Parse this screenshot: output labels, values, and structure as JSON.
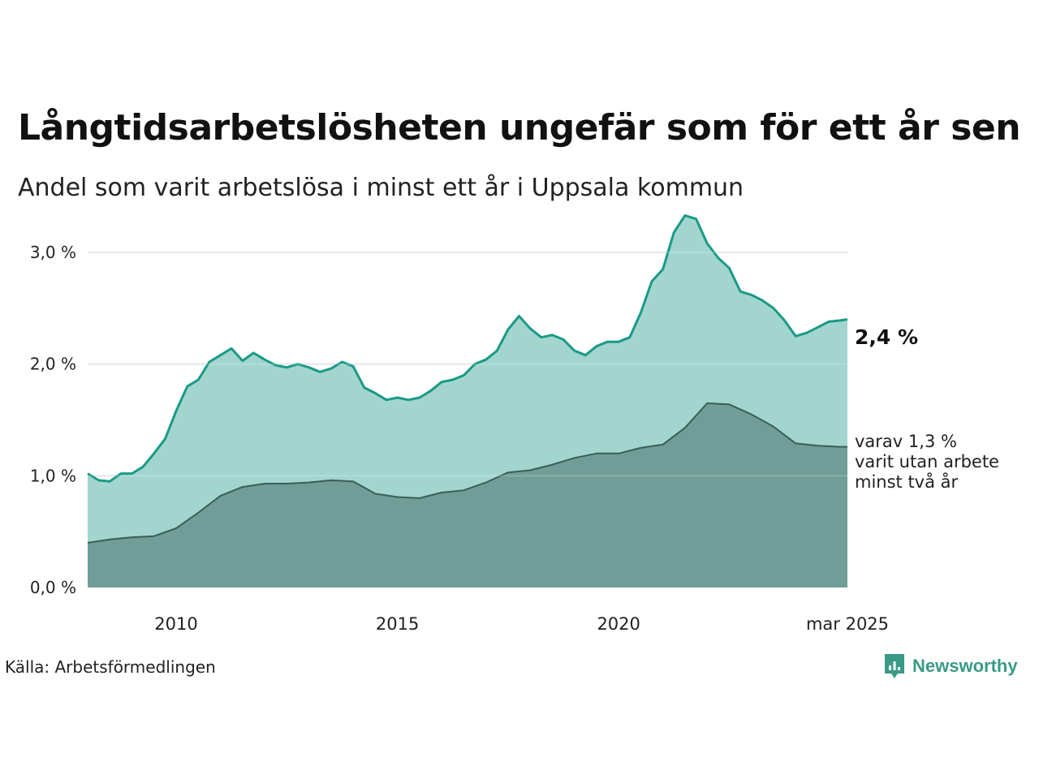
{
  "title": "Långtidsarbetslösheten ungefär som för ett år sen",
  "subtitle": "Andel som varit arbetslösa i minst ett år i Uppsala kommun",
  "end_label": "2,4 %",
  "sub_label": [
    "varav 1,3 %",
    "varit utan arbete",
    "minst två år"
  ],
  "source": "Källa: Arbetsförmedlingen",
  "brand": "Newsworthy",
  "colors": {
    "total_line": "#1a9a86",
    "total_fill": "#a3d5cf",
    "long_line": "#3b5e58",
    "long_fill": "#709d97",
    "grid": "#e2e2e2",
    "brand": "#3a9a86"
  },
  "chart_data": {
    "type": "area",
    "x_range": [
      2008.0,
      2025.17
    ],
    "ylim": [
      0,
      3.4
    ],
    "y_ticks": [
      {
        "value": 0,
        "label": "0,0 %"
      },
      {
        "value": 1,
        "label": "1,0 %"
      },
      {
        "value": 2,
        "label": "2,0 %"
      },
      {
        "value": 3,
        "label": "3,0 %"
      }
    ],
    "x_ticks": [
      {
        "value": 2010,
        "label": "2010"
      },
      {
        "value": 2015,
        "label": "2015"
      },
      {
        "value": 2020,
        "label": "2020"
      },
      {
        "value": 2025.17,
        "label": "mar 2025"
      }
    ],
    "grid": true,
    "series": [
      {
        "key": "total",
        "x": [
          2008.0,
          2008.25,
          2008.5,
          2008.75,
          2009.0,
          2009.25,
          2009.5,
          2009.75,
          2010.0,
          2010.25,
          2010.5,
          2010.75,
          2011.0,
          2011.25,
          2011.5,
          2011.75,
          2012.0,
          2012.25,
          2012.5,
          2012.75,
          2013.0,
          2013.25,
          2013.5,
          2013.75,
          2014.0,
          2014.25,
          2014.5,
          2014.75,
          2015.0,
          2015.25,
          2015.5,
          2015.75,
          2016.0,
          2016.25,
          2016.5,
          2016.75,
          2017.0,
          2017.25,
          2017.5,
          2017.75,
          2018.0,
          2018.25,
          2018.5,
          2018.75,
          2019.0,
          2019.25,
          2019.5,
          2019.75,
          2020.0,
          2020.25,
          2020.5,
          2020.75,
          2021.0,
          2021.25,
          2021.5,
          2021.75,
          2022.0,
          2022.25,
          2022.5,
          2022.75,
          2023.0,
          2023.25,
          2023.5,
          2023.75,
          2024.0,
          2024.25,
          2024.5,
          2024.75,
          2025.0,
          2025.17
        ],
        "values": [
          1.02,
          0.96,
          0.95,
          1.02,
          1.02,
          1.08,
          1.2,
          1.33,
          1.58,
          1.8,
          1.86,
          2.02,
          2.08,
          2.14,
          2.03,
          2.1,
          2.04,
          1.99,
          1.97,
          2.0,
          1.97,
          1.93,
          1.96,
          2.02,
          1.98,
          1.79,
          1.74,
          1.68,
          1.7,
          1.68,
          1.7,
          1.76,
          1.84,
          1.86,
          1.9,
          2.0,
          2.04,
          2.12,
          2.31,
          2.43,
          2.32,
          2.24,
          2.26,
          2.22,
          2.12,
          2.08,
          2.16,
          2.2,
          2.2,
          2.24,
          2.46,
          2.74,
          2.85,
          3.18,
          3.33,
          3.3,
          3.08,
          2.95,
          2.86,
          2.65,
          2.62,
          2.57,
          2.5,
          2.39,
          2.25,
          2.28,
          2.33,
          2.38,
          2.39,
          2.4
        ]
      },
      {
        "key": "long",
        "x": [
          2008.0,
          2008.5,
          2009.0,
          2009.5,
          2010.0,
          2010.5,
          2011.0,
          2011.5,
          2012.0,
          2012.5,
          2013.0,
          2013.5,
          2014.0,
          2014.5,
          2015.0,
          2015.5,
          2016.0,
          2016.5,
          2017.0,
          2017.5,
          2018.0,
          2018.5,
          2019.0,
          2019.5,
          2020.0,
          2020.5,
          2021.0,
          2021.5,
          2022.0,
          2022.5,
          2023.0,
          2023.5,
          2024.0,
          2024.5,
          2025.0,
          2025.17
        ],
        "values": [
          0.4,
          0.43,
          0.45,
          0.46,
          0.53,
          0.67,
          0.82,
          0.9,
          0.93,
          0.93,
          0.94,
          0.96,
          0.95,
          0.84,
          0.81,
          0.8,
          0.85,
          0.87,
          0.94,
          1.03,
          1.05,
          1.1,
          1.16,
          1.2,
          1.2,
          1.25,
          1.28,
          1.43,
          1.65,
          1.64,
          1.55,
          1.44,
          1.29,
          1.27,
          1.26,
          1.26
        ]
      }
    ]
  }
}
